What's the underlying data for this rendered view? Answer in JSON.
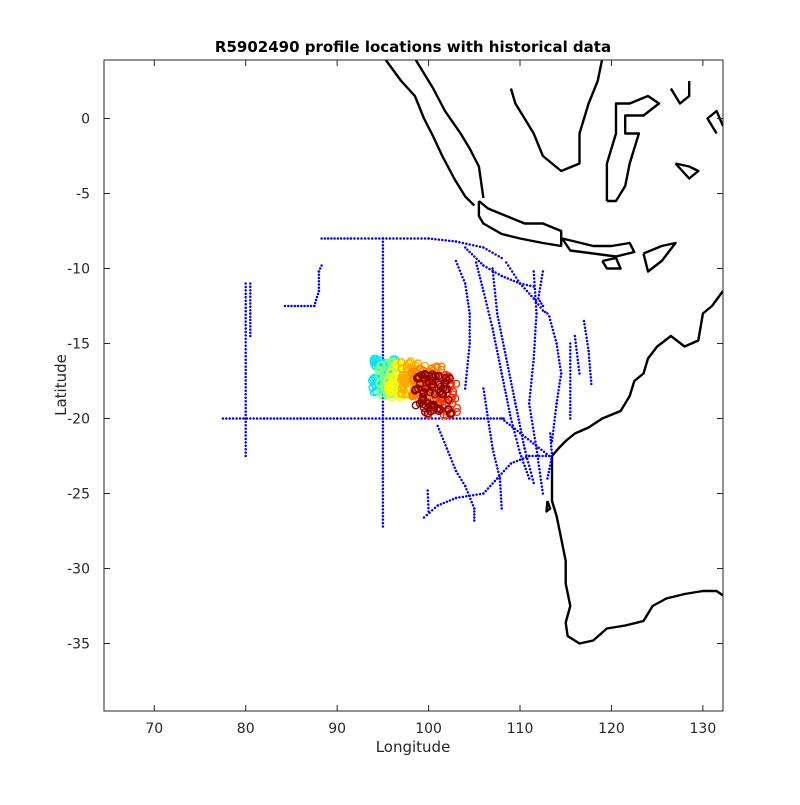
{
  "chart_data": {
    "type": "scatter",
    "title": "R5902490 profile locations with historical data",
    "xlabel": "Longitude",
    "ylabel": "Latitude",
    "xlim": [
      64.5,
      132.2
    ],
    "ylim": [
      -39.5,
      3.9
    ],
    "xticks": [
      70,
      80,
      90,
      100,
      110,
      120,
      130
    ],
    "yticks": [
      0,
      -5,
      -10,
      -15,
      -20,
      -25,
      -30,
      -35
    ],
    "grid": false,
    "colors": {
      "historical": "#0000ff",
      "coast": "#000000",
      "profile_ramp": [
        "#00ffff",
        "#7fff7f",
        "#ffff00",
        "#ff7f00",
        "#ff0000",
        "#7f0000"
      ]
    },
    "historical_tracks": [
      [
        [
          88.3,
          -8.0
        ],
        [
          91.5,
          -8.0
        ],
        [
          95.0,
          -8.0
        ],
        [
          100.0,
          -8.0
        ],
        [
          103.0,
          -8.2
        ],
        [
          106.0,
          -8.6
        ],
        [
          108.0,
          -9.3
        ]
      ],
      [
        [
          95.0,
          -8.0
        ],
        [
          95.0,
          -12.0
        ],
        [
          95.0,
          -16.0
        ],
        [
          95.0,
          -20.0
        ],
        [
          95.0,
          -24.0
        ],
        [
          95.0,
          -27.2
        ]
      ],
      [
        [
          77.5,
          -20.0
        ],
        [
          82.0,
          -20.0
        ],
        [
          86.0,
          -20.0
        ],
        [
          90.0,
          -20.0
        ],
        [
          95.0,
          -20.0
        ],
        [
          100.0,
          -20.0
        ],
        [
          105.0,
          -20.0
        ],
        [
          108.2,
          -20.0
        ]
      ],
      [
        [
          80.0,
          -11.0
        ],
        [
          80.0,
          -14.0
        ],
        [
          80.0,
          -17.0
        ],
        [
          80.0,
          -20.0
        ],
        [
          80.0,
          -22.5
        ]
      ],
      [
        [
          80.5,
          -11.0
        ],
        [
          80.5,
          -13.0
        ],
        [
          80.5,
          -14.5
        ]
      ],
      [
        [
          84.3,
          -12.5
        ],
        [
          87.5,
          -12.5
        ],
        [
          88.0,
          -11.5
        ],
        [
          88.0,
          -10.2
        ],
        [
          88.3,
          -9.8
        ]
      ],
      [
        [
          104.0,
          -8.6
        ],
        [
          106.0,
          -9.8
        ],
        [
          108.0,
          -10.5
        ],
        [
          110.0,
          -11.0
        ],
        [
          111.5,
          -11.2
        ]
      ],
      [
        [
          103.0,
          -9.5
        ],
        [
          104.0,
          -11.0
        ],
        [
          104.5,
          -13.0
        ],
        [
          104.5,
          -15.0
        ],
        [
          104.0,
          -18.0
        ]
      ],
      [
        [
          105.2,
          -9.6
        ],
        [
          106.0,
          -11.5
        ],
        [
          107.0,
          -14.0
        ],
        [
          108.0,
          -17.0
        ],
        [
          109.0,
          -20.0
        ],
        [
          110.0,
          -22.3
        ],
        [
          111.0,
          -24.0
        ]
      ],
      [
        [
          107.0,
          -10.0
        ],
        [
          107.5,
          -13.0
        ],
        [
          108.5,
          -16.0
        ],
        [
          109.5,
          -19.0
        ],
        [
          110.5,
          -22.0
        ],
        [
          111.5,
          -24.3
        ]
      ],
      [
        [
          108.5,
          -9.6
        ],
        [
          110.0,
          -11.0
        ],
        [
          111.5,
          -12.0
        ],
        [
          112.5,
          -12.8
        ],
        [
          113.0,
          -13.0
        ]
      ],
      [
        [
          111.5,
          -10.2
        ],
        [
          111.8,
          -13.0
        ],
        [
          111.5,
          -16.0
        ],
        [
          111.0,
          -19.0
        ],
        [
          111.8,
          -22.0
        ],
        [
          112.5,
          -25.0
        ]
      ],
      [
        [
          112.5,
          -10.2
        ],
        [
          112.0,
          -12.0
        ],
        [
          112.5,
          -12.5
        ]
      ],
      [
        [
          113.2,
          -13.2
        ],
        [
          114.0,
          -15.0
        ],
        [
          114.5,
          -17.0
        ],
        [
          114.0,
          -19.0
        ],
        [
          113.5,
          -21.5
        ]
      ],
      [
        [
          117.0,
          -13.5
        ],
        [
          117.5,
          -15.5
        ],
        [
          117.8,
          -17.7
        ]
      ],
      [
        [
          116.0,
          -14.5
        ],
        [
          116.5,
          -17.0
        ]
      ],
      [
        [
          115.5,
          -15.0
        ],
        [
          115.5,
          -20.0
        ]
      ],
      [
        [
          106.0,
          -18.0
        ],
        [
          107.0,
          -22.0
        ],
        [
          107.8,
          -24.0
        ],
        [
          108.0,
          -26.0
        ]
      ],
      [
        [
          108.0,
          -20.0
        ],
        [
          113.2,
          -22.5
        ]
      ],
      [
        [
          113.2,
          -22.5
        ],
        [
          111.0,
          -22.5
        ],
        [
          109.0,
          -23.0
        ],
        [
          107.5,
          -24.0
        ],
        [
          106.0,
          -25.0
        ],
        [
          103.0,
          -25.3
        ],
        [
          101.0,
          -25.8
        ],
        [
          99.5,
          -26.6
        ]
      ],
      [
        [
          101.0,
          -20.5
        ],
        [
          102.0,
          -22.0
        ],
        [
          103.0,
          -23.5
        ],
        [
          104.0,
          -24.5
        ],
        [
          105.0,
          -26.0
        ],
        [
          105.0,
          -26.8
        ]
      ],
      [
        [
          113.3,
          -21.0
        ],
        [
          113.5,
          -22.5
        ],
        [
          113.0,
          -24.0
        ]
      ],
      [
        [
          99.9,
          -24.8
        ],
        [
          100.0,
          -26.2
        ]
      ]
    ],
    "profile_clusters": [
      {
        "lon": [
          93.8,
          96.5
        ],
        "lat": [
          -18.3,
          -16.0
        ],
        "color": "#00e5ff"
      },
      {
        "lon": [
          94.5,
          97.5
        ],
        "lat": [
          -18.5,
          -16.2
        ],
        "color": "#80ff80"
      },
      {
        "lon": [
          95.5,
          98.5
        ],
        "lat": [
          -18.6,
          -16.3
        ],
        "color": "#ffff00"
      },
      {
        "lon": [
          97.0,
          100.5
        ],
        "lat": [
          -18.4,
          -16.2
        ],
        "color": "#ffaa00"
      },
      {
        "lon": [
          98.0,
          101.5
        ],
        "lat": [
          -18.8,
          -16.5
        ],
        "color": "#ff7f00"
      },
      {
        "lon": [
          99.5,
          103.2
        ],
        "lat": [
          -19.8,
          -17.0
        ],
        "color": "#ff3000"
      },
      {
        "lon": [
          98.5,
          102.5
        ],
        "lat": [
          -19.7,
          -17.0
        ],
        "color": "#8b0000"
      }
    ],
    "coastlines": [
      [
        [
          95.2,
          4.0
        ],
        [
          97.0,
          2.5
        ],
        [
          98.5,
          1.5
        ],
        [
          99.5,
          0.0
        ],
        [
          100.5,
          -1.2
        ],
        [
          101.5,
          -2.5
        ],
        [
          102.8,
          -4.0
        ],
        [
          104.0,
          -5.2
        ],
        [
          105.0,
          -5.8
        ]
      ],
      [
        [
          98.5,
          4.0
        ],
        [
          100.5,
          2.0
        ],
        [
          101.8,
          0.5
        ],
        [
          103.5,
          -1.0
        ],
        [
          104.5,
          -2.0
        ],
        [
          105.5,
          -3.2
        ],
        [
          106.0,
          -5.3
        ]
      ],
      [
        [
          105.5,
          -5.5
        ],
        [
          106.5,
          -6.0
        ],
        [
          108.5,
          -6.5
        ],
        [
          110.5,
          -7.0
        ],
        [
          112.5,
          -7.0
        ],
        [
          114.5,
          -7.5
        ],
        [
          114.5,
          -8.5
        ],
        [
          112.5,
          -8.3
        ],
        [
          110.0,
          -8.0
        ],
        [
          108.0,
          -7.7
        ],
        [
          106.0,
          -7.0
        ],
        [
          105.5,
          -6.5
        ],
        [
          105.5,
          -5.5
        ]
      ],
      [
        [
          114.6,
          -8.0
        ],
        [
          116.0,
          -8.2
        ],
        [
          118.0,
          -8.5
        ],
        [
          120.0,
          -8.5
        ],
        [
          122.0,
          -8.3
        ],
        [
          122.5,
          -8.9
        ],
        [
          120.5,
          -9.2
        ],
        [
          118.0,
          -9.0
        ],
        [
          115.5,
          -8.8
        ],
        [
          114.6,
          -8.0
        ]
      ],
      [
        [
          119.0,
          -9.5
        ],
        [
          120.5,
          -9.3
        ],
        [
          121.0,
          -10.0
        ],
        [
          119.5,
          -10.0
        ],
        [
          119.0,
          -9.5
        ]
      ],
      [
        [
          123.5,
          -9.0
        ],
        [
          125.5,
          -8.5
        ],
        [
          127.0,
          -8.3
        ],
        [
          125.5,
          -9.5
        ],
        [
          124.0,
          -10.2
        ],
        [
          123.5,
          -9.0
        ]
      ],
      [
        [
          109.0,
          2.0
        ],
        [
          109.5,
          1.0
        ],
        [
          110.5,
          0.0
        ],
        [
          111.5,
          -1.0
        ],
        [
          112.5,
          -2.5
        ],
        [
          114.5,
          -3.5
        ],
        [
          116.5,
          -3.0
        ],
        [
          116.5,
          -1.0
        ],
        [
          117.5,
          1.0
        ],
        [
          118.5,
          2.5
        ],
        [
          119.0,
          4.0
        ]
      ],
      [
        [
          119.5,
          -5.5
        ],
        [
          119.5,
          -3.0
        ],
        [
          120.5,
          -1.0
        ],
        [
          120.5,
          1.0
        ],
        [
          122.0,
          1.0
        ],
        [
          124.0,
          1.5
        ],
        [
          125.2,
          1.0
        ],
        [
          123.5,
          0.2
        ],
        [
          121.5,
          0.2
        ],
        [
          121.5,
          -1.0
        ],
        [
          123.0,
          -1.0
        ],
        [
          122.0,
          -3.0
        ],
        [
          121.5,
          -4.5
        ],
        [
          120.5,
          -5.5
        ],
        [
          119.5,
          -5.5
        ]
      ],
      [
        [
          126.5,
          2.0
        ],
        [
          127.5,
          1.0
        ],
        [
          128.5,
          1.5
        ],
        [
          128.5,
          2.5
        ]
      ],
      [
        [
          127.0,
          -3.0
        ],
        [
          128.5,
          -3.2
        ],
        [
          129.5,
          -3.5
        ],
        [
          128.5,
          -4.0
        ],
        [
          127.0,
          -3.0
        ]
      ],
      [
        [
          131.5,
          -1.0
        ],
        [
          130.5,
          0.0
        ],
        [
          131.5,
          0.5
        ],
        [
          132.2,
          -0.5
        ]
      ],
      [
        [
          132.2,
          -11.5
        ],
        [
          131.0,
          -12.5
        ],
        [
          130.0,
          -13.0
        ],
        [
          129.5,
          -14.8
        ],
        [
          128.0,
          -15.2
        ],
        [
          126.5,
          -14.5
        ],
        [
          125.0,
          -15.2
        ],
        [
          124.0,
          -16.0
        ],
        [
          123.5,
          -17.0
        ],
        [
          122.5,
          -17.5
        ],
        [
          122.0,
          -18.5
        ],
        [
          121.0,
          -19.5
        ],
        [
          119.0,
          -20.0
        ],
        [
          117.5,
          -20.6
        ],
        [
          116.0,
          -21.0
        ],
        [
          115.0,
          -21.5
        ],
        [
          114.2,
          -22.0
        ],
        [
          113.5,
          -22.5
        ],
        [
          113.5,
          -24.0
        ],
        [
          113.5,
          -25.5
        ],
        [
          114.0,
          -26.5
        ],
        [
          114.5,
          -28.0
        ],
        [
          115.0,
          -29.5
        ],
        [
          115.0,
          -31.0
        ],
        [
          115.5,
          -32.5
        ],
        [
          115.0,
          -33.6
        ],
        [
          115.2,
          -34.5
        ],
        [
          116.5,
          -35.0
        ],
        [
          118.0,
          -34.8
        ],
        [
          119.5,
          -34.0
        ],
        [
          121.5,
          -33.8
        ],
        [
          123.5,
          -33.5
        ],
        [
          124.5,
          -32.5
        ],
        [
          126.0,
          -32.0
        ],
        [
          128.0,
          -31.7
        ],
        [
          130.0,
          -31.5
        ],
        [
          131.5,
          -31.5
        ],
        [
          132.2,
          -31.8
        ]
      ],
      [
        [
          113.0,
          -25.5
        ],
        [
          113.3,
          -26.0
        ],
        [
          112.9,
          -26.2
        ],
        [
          113.0,
          -25.5
        ]
      ]
    ]
  }
}
